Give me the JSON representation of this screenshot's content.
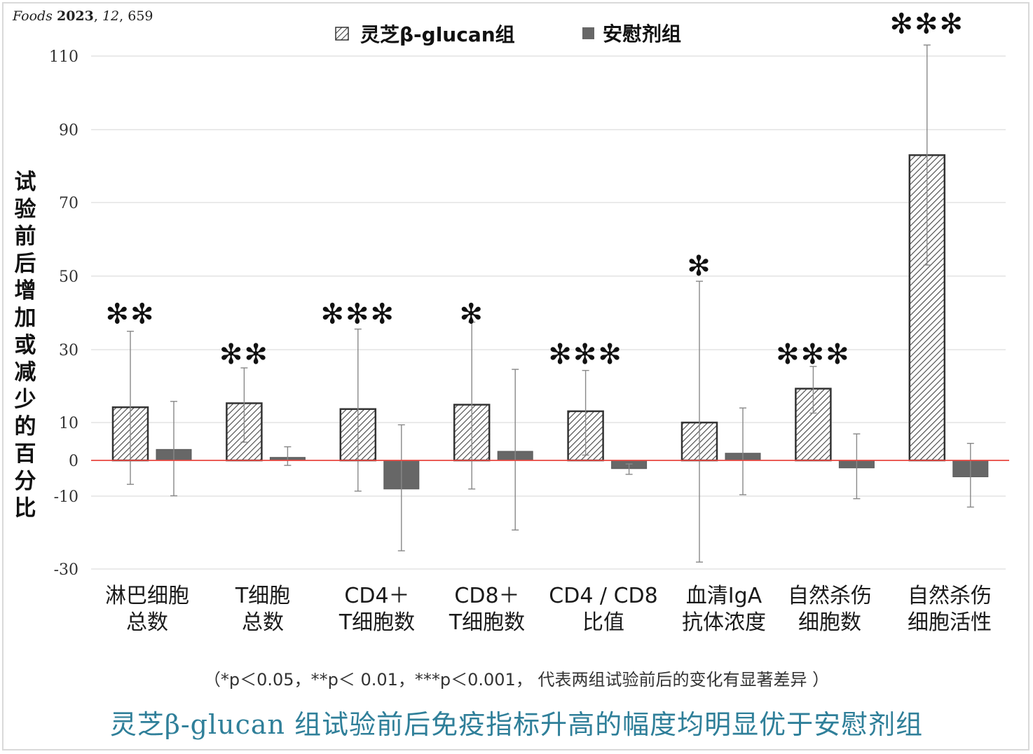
{
  "source": {
    "journal": "Foods",
    "year": "2023",
    "volume": "12",
    "page": "659"
  },
  "chart_data": {
    "type": "bar",
    "ylabel": "试验前后增加或减少的百分比",
    "yticks": [
      110,
      90,
      70,
      50,
      30,
      10,
      0,
      -10,
      -30
    ],
    "ylim": [
      -30,
      110
    ],
    "legend_position": "top-center",
    "categories": [
      [
        "淋巴细胞",
        "总数"
      ],
      [
        "T细胞",
        "总数"
      ],
      [
        "CD4＋",
        "T细胞数"
      ],
      [
        "CD8＋",
        "T细胞数"
      ],
      [
        "CD4 / CD8",
        "比值"
      ],
      [
        "血清IgA",
        "抗体浓度"
      ],
      [
        "自然杀伤",
        "细胞数"
      ],
      [
        "自然杀伤",
        "细胞活性"
      ]
    ],
    "series": [
      {
        "name": "灵芝β-glucan组",
        "pattern": "hatched",
        "color": "#444444",
        "values": [
          14.2,
          15.3,
          13.7,
          14.9,
          13.1,
          10.0,
          19.3,
          83.0
        ],
        "err_low": [
          -6.7,
          4.8,
          -8.6,
          -8.0,
          1.4,
          -28.1,
          12.6,
          53.0
        ],
        "err_high": [
          35.0,
          25.0,
          35.6,
          37.5,
          24.3,
          48.6,
          25.4,
          113.0
        ]
      },
      {
        "name": "安慰剂组",
        "pattern": "solid",
        "color": "#676767",
        "values": [
          2.9,
          0.8,
          -8.0,
          2.4,
          -2.3,
          1.9,
          -2.1,
          -4.6
        ],
        "err_low": [
          -9.9,
          -1.4,
          -25.0,
          -19.3,
          -3.9,
          -9.6,
          -10.7,
          -13.0
        ],
        "err_high": [
          15.8,
          3.6,
          9.4,
          24.6,
          -1.0,
          14.0,
          7.0,
          4.5
        ]
      }
    ],
    "significance": [
      "**",
      "**",
      "***",
      "*",
      "***",
      "*",
      "***",
      "***"
    ],
    "significance_y": [
      41,
      30,
      41,
      41,
      30,
      54,
      30,
      120
    ],
    "baseline_color": "#e8463f"
  },
  "footnote": "（*p＜0.05，**p＜ 0.01，***p＜0.001， 代表两组试验前后的变化有显著差异 ）",
  "headline": "灵芝β-glucan 组试验前后免疫指标升高的幅度均明显优于安慰剂组"
}
